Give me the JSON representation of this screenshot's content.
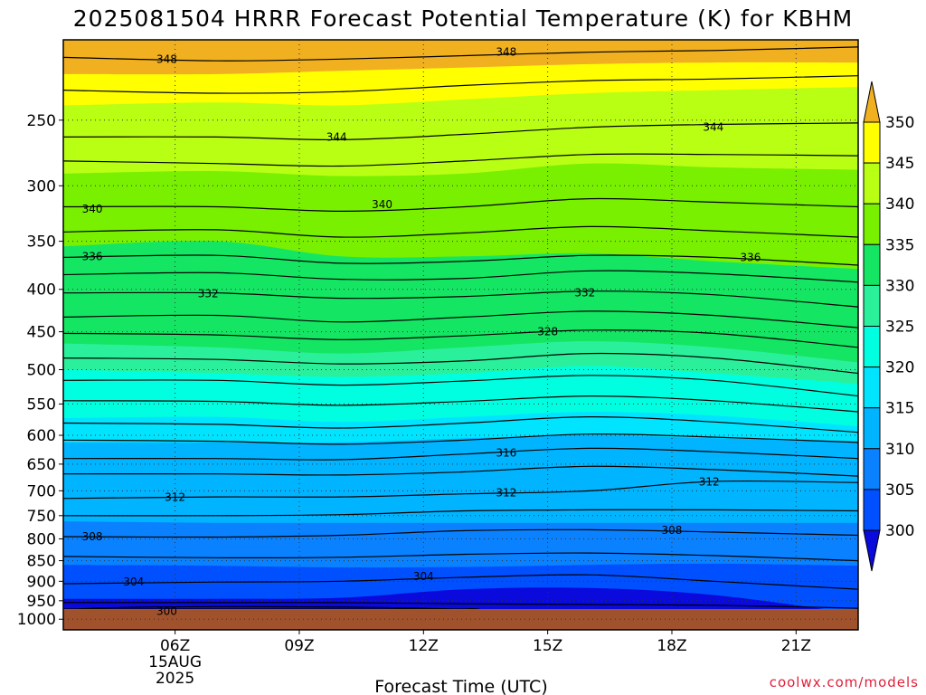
{
  "title": "2025081504 HRRR Forecast Potential Temperature (K) for KBHM",
  "credit": "coolwx.com/models",
  "colors": {
    "credit": "#e0203a",
    "ground": "#a0522d",
    "contour": "#000000"
  },
  "chart_data": {
    "type": "heatmap",
    "title": "2025081504 HRRR Forecast Potential Temperature (K) for KBHM",
    "xlabel": "Forecast Time (UTC)",
    "ylabel": "",
    "x_range_hours_utc": [
      3.3,
      22.5
    ],
    "y_range_hpa": [
      200,
      1030
    ],
    "y_scale": "log-pressure (inverted)",
    "surface_pressure_hpa": 1000,
    "grid": "dotted",
    "x_ticks": [
      {
        "hour": 6,
        "label": "06Z",
        "sub": [
          "15AUG",
          "2025"
        ]
      },
      {
        "hour": 9,
        "label": "09Z",
        "sub": []
      },
      {
        "hour": 12,
        "label": "12Z",
        "sub": []
      },
      {
        "hour": 15,
        "label": "15Z",
        "sub": []
      },
      {
        "hour": 18,
        "label": "18Z",
        "sub": []
      },
      {
        "hour": 21,
        "label": "21Z",
        "sub": []
      }
    ],
    "y_ticks": [
      250,
      300,
      350,
      400,
      450,
      500,
      550,
      600,
      650,
      700,
      750,
      800,
      850,
      900,
      950,
      1000
    ],
    "isentrope_pressure_at_x": [
      4,
      7,
      10,
      13,
      16,
      19,
      22
    ],
    "levels": [
      {
        "theta": 350,
        "p": [
          220,
          220,
          218,
          216,
          214,
          213,
          213
        ]
      },
      {
        "theta": 346,
        "p": [
          240,
          238,
          240,
          236,
          232,
          230,
          228
        ]
      },
      {
        "theta": 342,
        "p": [
          290,
          288,
          292,
          290,
          282,
          285,
          287
        ]
      },
      {
        "theta": 338,
        "p": [
          355,
          350,
          365,
          365,
          362,
          370,
          378
        ]
      },
      {
        "theta": 334,
        "p": [
          392,
          388,
          395,
          390,
          385,
          388,
          398
        ]
      },
      {
        "theta": 330,
        "p": [
          465,
          470,
          478,
          470,
          462,
          470,
          490
        ]
      },
      {
        "theta": 326,
        "p": [
          500,
          505,
          510,
          505,
          495,
          505,
          520
        ]
      },
      {
        "theta": 322,
        "p": [
          572,
          570,
          578,
          570,
          562,
          568,
          585
        ]
      },
      {
        "theta": 318,
        "p": [
          612,
          612,
          612,
          605,
          600,
          605,
          610
        ]
      },
      {
        "theta": 314,
        "p": [
          690,
          688,
          688,
          680,
          670,
          672,
          680
        ]
      },
      {
        "theta": 310,
        "p": [
          762,
          765,
          765,
          765,
          765,
          765,
          765
        ]
      },
      {
        "theta": 306,
        "p": [
          860,
          862,
          866,
          865,
          860,
          857,
          862
        ]
      },
      {
        "theta": 302,
        "p": [
          945,
          945,
          942,
          920,
          917,
          935,
          985
        ]
      }
    ],
    "contour_lines": [
      {
        "theta": 348,
        "p": [
          210,
          212,
          211,
          209,
          207,
          206,
          204
        ]
      },
      {
        "theta": 346,
        "p": [
          230,
          232,
          231,
          227,
          224,
          223,
          221
        ]
      },
      {
        "theta": 344,
        "p": [
          262,
          262,
          264,
          260,
          255,
          253,
          252
        ]
      },
      {
        "theta": 342,
        "p": [
          280,
          282,
          284,
          280,
          275,
          275,
          276
        ]
      },
      {
        "theta": 340,
        "p": [
          318,
          318,
          322,
          318,
          311,
          314,
          318
        ]
      },
      {
        "theta": 338,
        "p": [
          341,
          339,
          346,
          342,
          336,
          340,
          346
        ]
      },
      {
        "theta": 336,
        "p": [
          366,
          364,
          372,
          370,
          364,
          366,
          374
        ]
      },
      {
        "theta": 334,
        "p": [
          384,
          382,
          389,
          388,
          380,
          383,
          392
        ]
      },
      {
        "theta": 332,
        "p": [
          404,
          404,
          410,
          408,
          402,
          406,
          420
        ]
      },
      {
        "theta": 330,
        "p": [
          432,
          430,
          438,
          432,
          425,
          430,
          445
        ]
      },
      {
        "theta": 328,
        "p": [
          452,
          454,
          460,
          455,
          448,
          452,
          470
        ]
      },
      {
        "theta": 326,
        "p": [
          484,
          486,
          492,
          488,
          478,
          484,
          505
        ]
      },
      {
        "theta": 324,
        "p": [
          515,
          515,
          522,
          516,
          508,
          515,
          538
        ]
      },
      {
        "theta": 322,
        "p": [
          545,
          546,
          552,
          546,
          538,
          545,
          562
        ]
      },
      {
        "theta": 320,
        "p": [
          580,
          582,
          588,
          580,
          570,
          578,
          595
        ]
      },
      {
        "theta": 318,
        "p": [
          608,
          610,
          615,
          608,
          598,
          603,
          612
        ]
      },
      {
        "theta": 316,
        "p": [
          640,
          640,
          642,
          632,
          622,
          628,
          640
        ]
      },
      {
        "theta": 314,
        "p": [
          668,
          668,
          670,
          664,
          654,
          660,
          672
        ]
      },
      {
        "theta": 312,
        "p": [
          715,
          712,
          712,
          706,
          700,
          682,
          684
        ]
      },
      {
        "theta": 310,
        "p": [
          750,
          750,
          748,
          740,
          738,
          738,
          740
        ]
      },
      {
        "theta": 308,
        "p": [
          795,
          796,
          792,
          782,
          780,
          785,
          792
        ]
      },
      {
        "theta": 306,
        "p": [
          840,
          843,
          842,
          835,
          832,
          838,
          850
        ]
      },
      {
        "theta": 304,
        "p": [
          906,
          902,
          900,
          890,
          884,
          900,
          920
        ]
      },
      {
        "theta": 302,
        "p": [
          955,
          955,
          955,
          958,
          960,
          962,
          970
        ]
      }
    ],
    "contour_labels": [
      {
        "text": "348",
        "hour": 5.8,
        "p": 211
      },
      {
        "text": "348",
        "hour": 14.0,
        "p": 207
      },
      {
        "text": "344",
        "hour": 9.9,
        "p": 262
      },
      {
        "text": "344",
        "hour": 19.0,
        "p": 255
      },
      {
        "text": "340",
        "hour": 4.0,
        "p": 320
      },
      {
        "text": "340",
        "hour": 11.0,
        "p": 316
      },
      {
        "text": "336",
        "hour": 4.0,
        "p": 365
      },
      {
        "text": "336",
        "hour": 19.9,
        "p": 366
      },
      {
        "text": "332",
        "hour": 6.8,
        "p": 405
      },
      {
        "text": "332",
        "hour": 15.9,
        "p": 404
      },
      {
        "text": "328",
        "hour": 15.0,
        "p": 450
      },
      {
        "text": "316",
        "hour": 14.0,
        "p": 630
      },
      {
        "text": "312",
        "hour": 6.0,
        "p": 713
      },
      {
        "text": "312",
        "hour": 14.0,
        "p": 704
      },
      {
        "text": "312",
        "hour": 18.9,
        "p": 683
      },
      {
        "text": "308",
        "hour": 4.0,
        "p": 795
      },
      {
        "text": "308",
        "hour": 18.0,
        "p": 781
      },
      {
        "text": "304",
        "hour": 5.0,
        "p": 901
      },
      {
        "text": "304",
        "hour": 12.0,
        "p": 888
      },
      {
        "text": "300",
        "hour": 5.8,
        "p": 978
      }
    ],
    "low_layer_300": {
      "theta": 300,
      "hour_range": [
        3.3,
        13.4
      ],
      "top_p": 970
    },
    "colorbar": {
      "ticks": [
        350,
        345,
        340,
        335,
        330,
        325,
        320,
        315,
        310,
        305,
        300
      ],
      "bands": [
        {
          "from": 350,
          "color": "#f0b020"
        },
        {
          "from": 345,
          "to": 350,
          "color": "#ffff00"
        },
        {
          "from": 340,
          "to": 345,
          "color": "#b9ff14"
        },
        {
          "from": 335,
          "to": 340,
          "color": "#78f000"
        },
        {
          "from": 330,
          "to": 335,
          "color": "#14e664"
        },
        {
          "from": 325,
          "to": 330,
          "color": "#2bf09b"
        },
        {
          "from": 320,
          "to": 325,
          "color": "#00ffe0"
        },
        {
          "from": 315,
          "to": 320,
          "color": "#00e4ff"
        },
        {
          "from": 310,
          "to": 315,
          "color": "#00b4ff"
        },
        {
          "from": 305,
          "to": 310,
          "color": "#0a82ff"
        },
        {
          "from": 300,
          "to": 305,
          "color": "#0050ff"
        },
        {
          "to": 300,
          "color": "#0a0adc"
        }
      ]
    }
  }
}
